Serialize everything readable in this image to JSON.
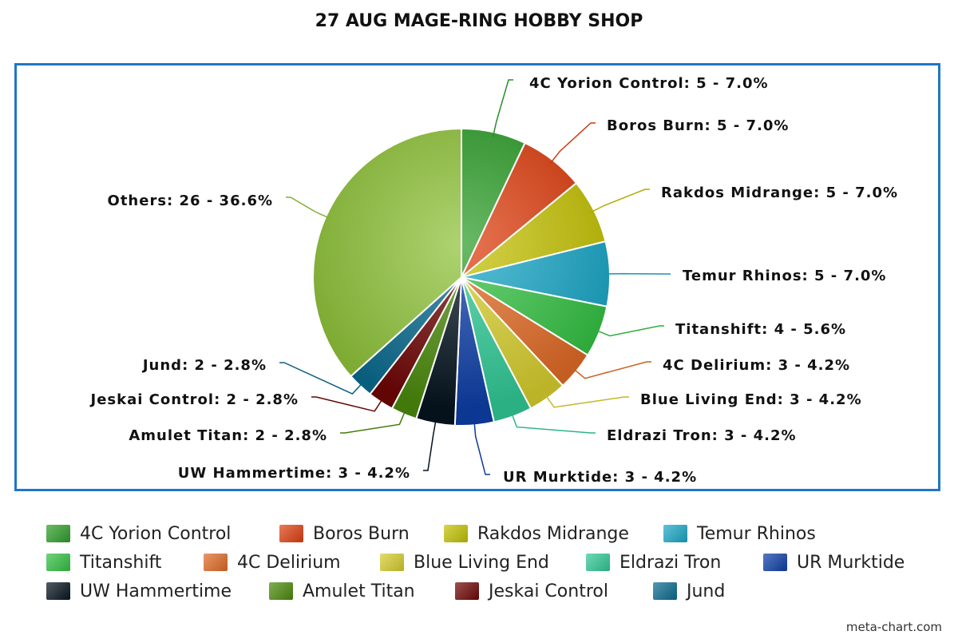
{
  "chart_data": {
    "type": "pie",
    "title": "27 AUG MAGE-RING HOBBY SHOP",
    "legend_position": "bottom",
    "slices": [
      {
        "label": "4C Yorion Control",
        "value": 5,
        "percent": "7.0%",
        "color": "#2f9e2a"
      },
      {
        "label": "Boros Burn",
        "value": 5,
        "percent": "7.0%",
        "color": "#dd3f10"
      },
      {
        "label": "Rakdos Midrange",
        "value": 5,
        "percent": "7.0%",
        "color": "#c3c104"
      },
      {
        "label": "Temur Rhinos",
        "value": 5,
        "percent": "7.0%",
        "color": "#1aa6c6"
      },
      {
        "label": "Titanshift",
        "value": 4,
        "percent": "5.6%",
        "color": "#34c043"
      },
      {
        "label": "4C Delirium",
        "value": 3,
        "percent": "4.2%",
        "color": "#df6a26"
      },
      {
        "label": "Blue Living End",
        "value": 3,
        "percent": "4.2%",
        "color": "#d6cd2d"
      },
      {
        "label": "Eldrazi Tron",
        "value": 3,
        "percent": "4.2%",
        "color": "#30c895"
      },
      {
        "label": "UR Murktide",
        "value": 3,
        "percent": "4.2%",
        "color": "#0e3ea6"
      },
      {
        "label": "UW Hammertime",
        "value": 3,
        "percent": "4.2%",
        "color": "#061420"
      },
      {
        "label": "Amulet Titan",
        "value": 2,
        "percent": "2.8%",
        "color": "#4b8a0c"
      },
      {
        "label": "Jeskai Control",
        "value": 2,
        "percent": "2.8%",
        "color": "#6e0606"
      },
      {
        "label": "Jund",
        "value": 2,
        "percent": "2.8%",
        "color": "#0b6b8e"
      },
      {
        "label": "Others",
        "value": 26,
        "percent": "36.6%",
        "color": "#8fc23a"
      }
    ]
  },
  "slice_labels": [
    "4C Yorion Control: 5 - 7.0%",
    "Boros Burn: 5 - 7.0%",
    "Rakdos Midrange: 5 - 7.0%",
    "Temur Rhinos: 5 - 7.0%",
    "Titanshift: 4 - 5.6%",
    "4C Delirium: 3 - 4.2%",
    "Blue Living End: 3 - 4.2%",
    "Eldrazi Tron: 3 - 4.2%",
    "UR Murktide: 3 - 4.2%",
    "UW Hammertime: 3 - 4.2%",
    "Amulet Titan: 2 - 2.8%",
    "Jeskai Control: 2 - 2.8%",
    "Jund: 2 - 2.8%",
    "Others: 26 - 36.6%"
  ],
  "watermark": "meta-chart.com"
}
